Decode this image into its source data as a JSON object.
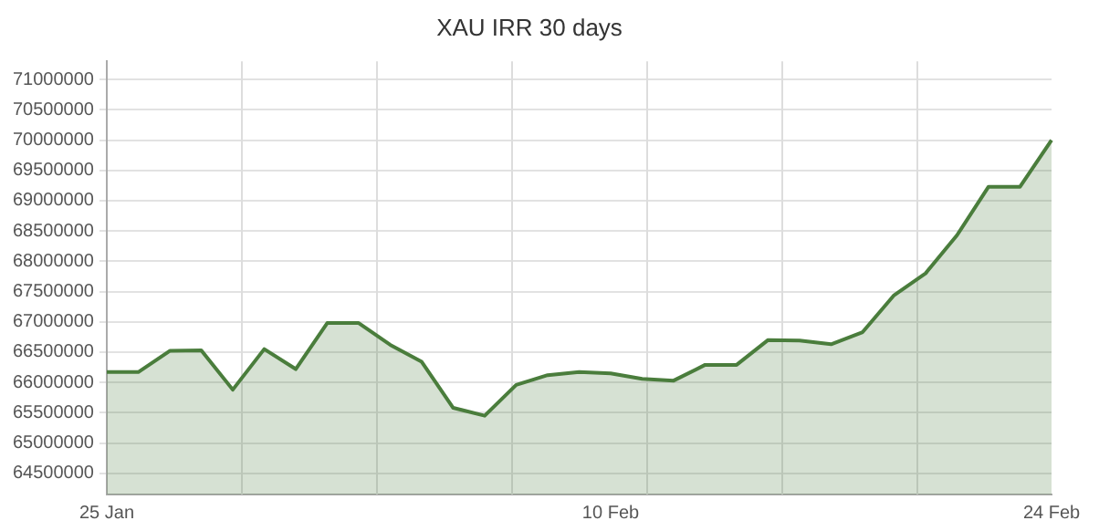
{
  "chart_data": {
    "type": "area",
    "title": "XAU IRR 30 days",
    "categories": [
      "25 Jan",
      null,
      null,
      null,
      null,
      null,
      null,
      null,
      null,
      null,
      null,
      null,
      null,
      null,
      null,
      null,
      "10 Feb",
      null,
      null,
      null,
      null,
      null,
      null,
      null,
      null,
      null,
      null,
      null,
      null,
      null,
      "24 Feb"
    ],
    "series": [
      {
        "color": "#4a7d3c",
        "values": [
          66170000,
          66170000,
          66520000,
          66530000,
          65880000,
          66550000,
          66220000,
          66980000,
          66980000,
          66620000,
          66340000,
          65580000,
          65450000,
          65960000,
          66120000,
          66170000,
          66150000,
          66060000,
          66030000,
          66290000,
          66290000,
          66700000,
          66690000,
          66630000,
          66830000,
          67440000,
          67800000,
          68430000,
          69230000,
          69230000,
          70000000
        ]
      }
    ],
    "ylim": [
      64150000,
      71300000
    ],
    "yticks": [
      64500000,
      65000000,
      65500000,
      66000000,
      66500000,
      67000000,
      67500000,
      68000000,
      68500000,
      69000000,
      69500000,
      70000000,
      70500000,
      71000000
    ],
    "grid": true,
    "legend": false
  }
}
